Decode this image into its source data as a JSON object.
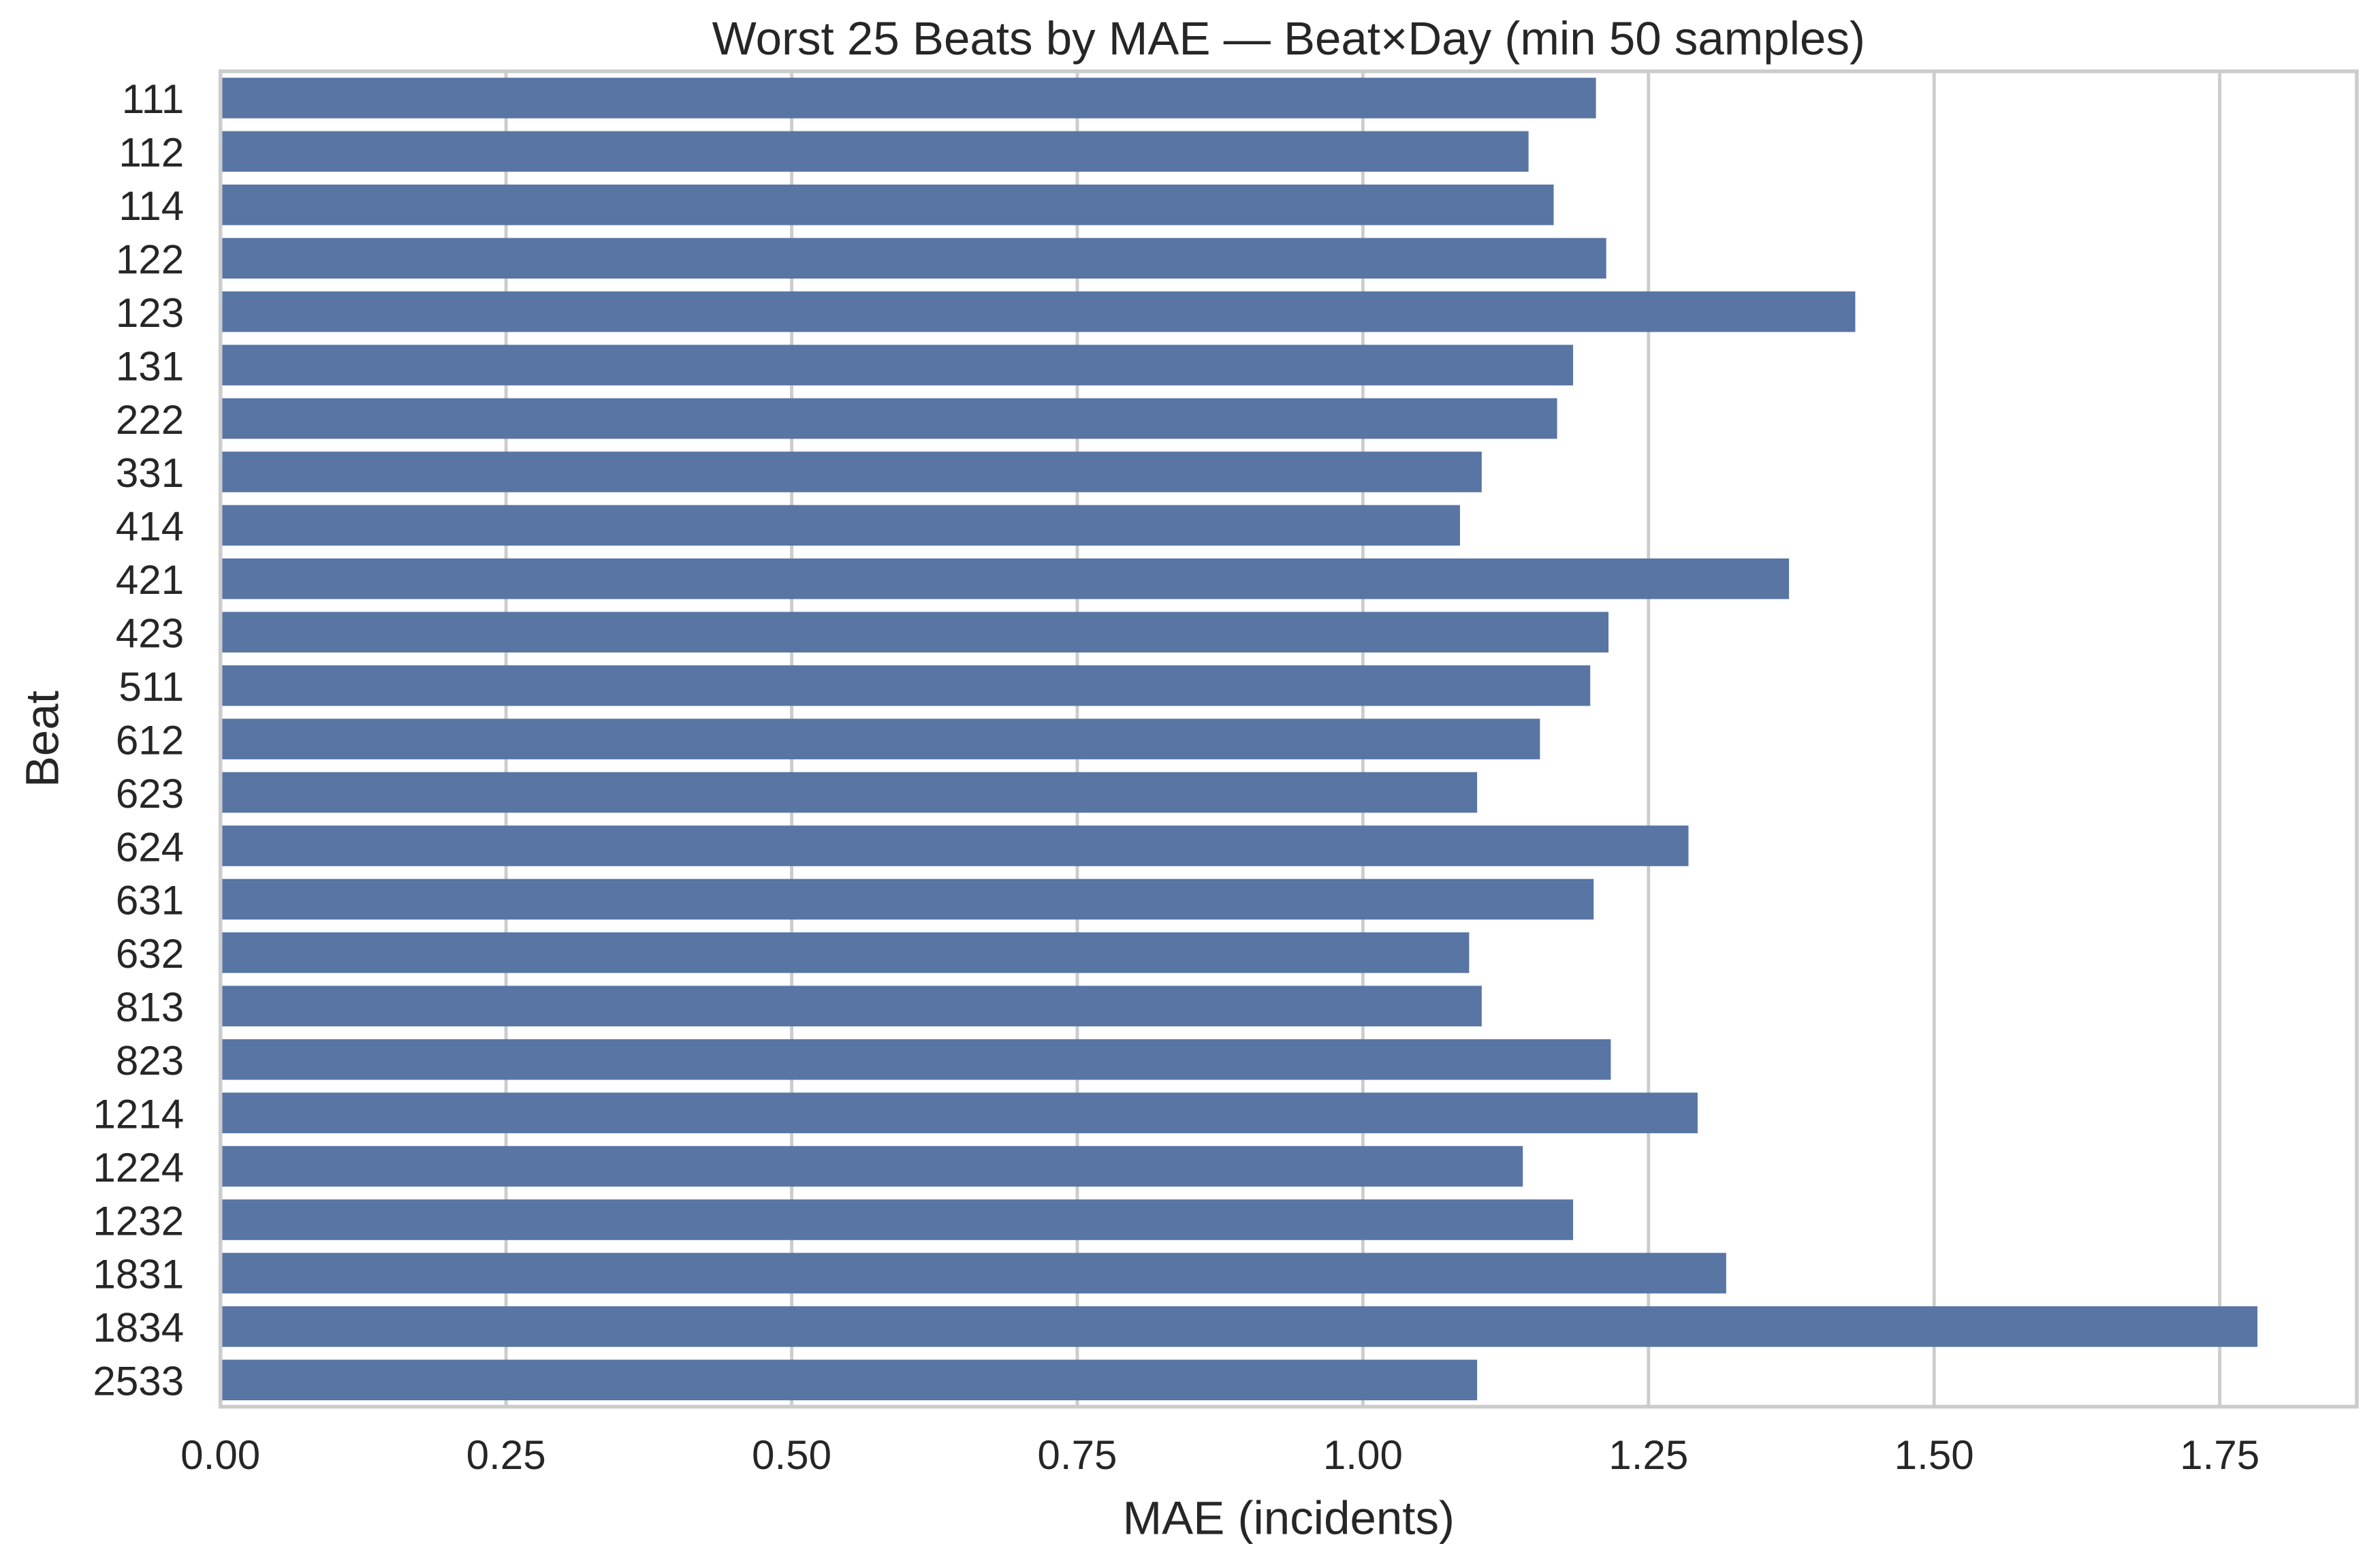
{
  "chart_data": {
    "type": "bar",
    "orientation": "horizontal",
    "title": "Worst 25 Beats by MAE — Beat×Day (min 50 samples)",
    "xlabel": "MAE (incidents)",
    "ylabel": "Beat",
    "xlim": [
      0,
      1.87
    ],
    "xticks": [
      "0.00",
      "0.25",
      "0.50",
      "0.75",
      "1.00",
      "1.25",
      "1.50",
      "1.75"
    ],
    "grid": "x",
    "bar_color": "#5875a4",
    "categories": [
      "111",
      "112",
      "114",
      "122",
      "123",
      "131",
      "222",
      "331",
      "414",
      "421",
      "423",
      "511",
      "612",
      "623",
      "624",
      "631",
      "632",
      "813",
      "823",
      "1214",
      "1224",
      "1232",
      "1831",
      "1834",
      "2533"
    ],
    "values": [
      1.204,
      1.145,
      1.167,
      1.213,
      1.431,
      1.184,
      1.17,
      1.104,
      1.085,
      1.373,
      1.215,
      1.199,
      1.155,
      1.1,
      1.285,
      1.202,
      1.093,
      1.104,
      1.217,
      1.293,
      1.14,
      1.184,
      1.318,
      1.783,
      1.1
    ]
  }
}
